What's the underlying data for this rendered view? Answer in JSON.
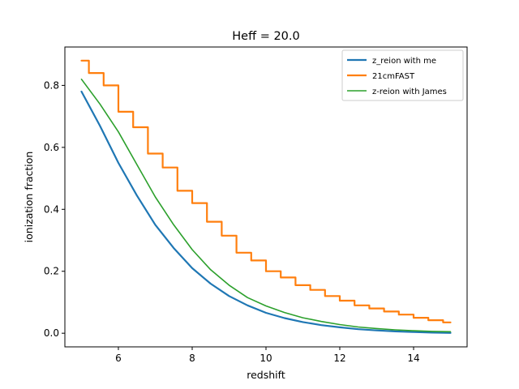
{
  "chart_data": {
    "type": "line",
    "title": "Heff = 20.0",
    "xlabel": "redshift",
    "ylabel": "ionization fraction",
    "xlim": [
      4.55,
      15.45
    ],
    "ylim": [
      -0.044,
      0.924
    ],
    "xticks": [
      6,
      8,
      10,
      12,
      14
    ],
    "yticks": [
      0.0,
      0.2,
      0.4,
      0.6,
      0.8
    ],
    "xtick_labels": [
      "6",
      "8",
      "10",
      "12",
      "14"
    ],
    "ytick_labels": [
      "0.0",
      "0.2",
      "0.4",
      "0.6",
      "0.8"
    ],
    "grid": false,
    "legend_position": "top-right",
    "series": [
      {
        "name": "z_reion with me",
        "color": "#1f77b4",
        "width": 2.2,
        "step": false,
        "points": [
          [
            5.0,
            0.78
          ],
          [
            5.5,
            0.67
          ],
          [
            6.0,
            0.55
          ],
          [
            6.5,
            0.445
          ],
          [
            7.0,
            0.35
          ],
          [
            7.5,
            0.275
          ],
          [
            8.0,
            0.21
          ],
          [
            8.5,
            0.16
          ],
          [
            9.0,
            0.12
          ],
          [
            9.5,
            0.09
          ],
          [
            10.0,
            0.066
          ],
          [
            10.5,
            0.049
          ],
          [
            11.0,
            0.036
          ],
          [
            11.5,
            0.026
          ],
          [
            12.0,
            0.019
          ],
          [
            12.5,
            0.013
          ],
          [
            13.0,
            0.009
          ],
          [
            13.5,
            0.006
          ],
          [
            14.0,
            0.004
          ],
          [
            14.5,
            0.002
          ],
          [
            15.0,
            0.001
          ]
        ]
      },
      {
        "name": "21cmFAST",
        "color": "#ff7f0e",
        "width": 2.2,
        "step": true,
        "points": [
          [
            5.0,
            0.88
          ],
          [
            5.4,
            0.84
          ],
          [
            5.8,
            0.8
          ],
          [
            6.2,
            0.715
          ],
          [
            6.6,
            0.665
          ],
          [
            7.0,
            0.58
          ],
          [
            7.4,
            0.535
          ],
          [
            7.8,
            0.46
          ],
          [
            8.2,
            0.42
          ],
          [
            8.6,
            0.36
          ],
          [
            9.0,
            0.315
          ],
          [
            9.4,
            0.26
          ],
          [
            9.8,
            0.235
          ],
          [
            10.2,
            0.2
          ],
          [
            10.6,
            0.18
          ],
          [
            11.0,
            0.155
          ],
          [
            11.4,
            0.14
          ],
          [
            11.8,
            0.12
          ],
          [
            12.2,
            0.105
          ],
          [
            12.6,
            0.09
          ],
          [
            13.0,
            0.08
          ],
          [
            13.4,
            0.07
          ],
          [
            13.8,
            0.06
          ],
          [
            14.2,
            0.05
          ],
          [
            14.6,
            0.042
          ],
          [
            15.0,
            0.035
          ]
        ]
      },
      {
        "name": "z-reion with James",
        "color": "#2ca02c",
        "width": 1.6,
        "step": false,
        "points": [
          [
            5.0,
            0.82
          ],
          [
            5.5,
            0.74
          ],
          [
            6.0,
            0.65
          ],
          [
            6.5,
            0.545
          ],
          [
            7.0,
            0.44
          ],
          [
            7.5,
            0.35
          ],
          [
            8.0,
            0.27
          ],
          [
            8.5,
            0.205
          ],
          [
            9.0,
            0.155
          ],
          [
            9.5,
            0.115
          ],
          [
            10.0,
            0.088
          ],
          [
            10.5,
            0.067
          ],
          [
            11.0,
            0.05
          ],
          [
            11.5,
            0.038
          ],
          [
            12.0,
            0.028
          ],
          [
            12.5,
            0.02
          ],
          [
            13.0,
            0.015
          ],
          [
            13.5,
            0.011
          ],
          [
            14.0,
            0.008
          ],
          [
            14.5,
            0.006
          ],
          [
            15.0,
            0.005
          ]
        ]
      }
    ]
  }
}
